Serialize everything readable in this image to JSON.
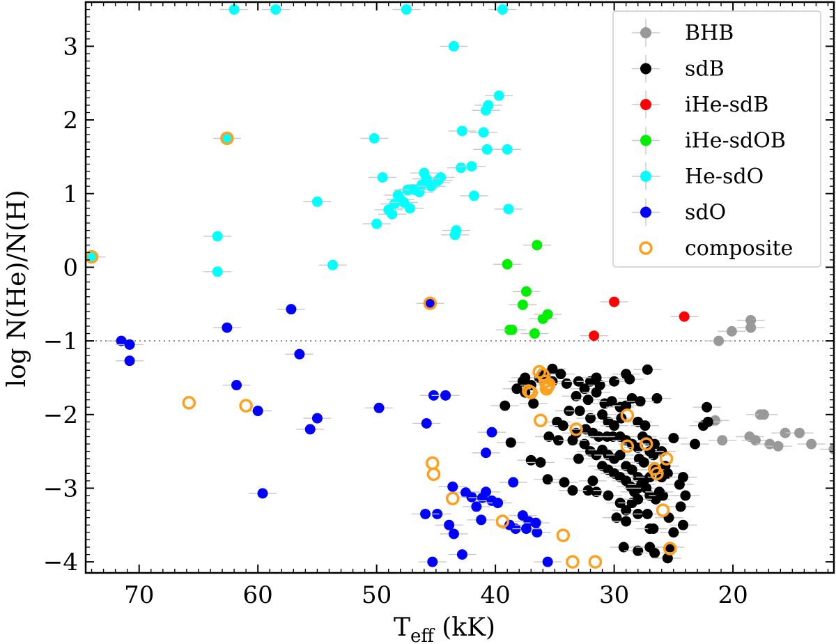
{
  "chart_data": {
    "type": "scatter",
    "xlabel_main": "T",
    "xlabel_sub": "eff",
    "xlabel_unit": " (kK)",
    "ylabel": "log N(He)/N(H)",
    "xlim": [
      74.5,
      11.5
    ],
    "ylim": [
      -4.15,
      3.6
    ],
    "x_reversed": true,
    "xticks": [
      70,
      60,
      50,
      40,
      30,
      20
    ],
    "yticks": [
      -4,
      -3,
      -2,
      -1,
      0,
      1,
      2,
      3
    ],
    "ytick_labels": [
      "−4",
      "−3",
      "−2",
      "−1",
      "0",
      "1",
      "2",
      "3"
    ],
    "reference_line": {
      "y": -1,
      "style": "dotted",
      "color": "#888888"
    },
    "legend_position": "top-right",
    "legend": [
      {
        "name": "BHB",
        "color": "#999999",
        "kind": "filled"
      },
      {
        "name": "sdB",
        "color": "#000000",
        "kind": "filled"
      },
      {
        "name": "iHe-sdB",
        "color": "#ff0000",
        "kind": "filled"
      },
      {
        "name": "iHe-sdOB",
        "color": "#00ee00",
        "kind": "filled"
      },
      {
        "name": "He-sdO",
        "color": "#00ffff",
        "kind": "filled"
      },
      {
        "name": "sdO",
        "color": "#0000ff",
        "kind": "filled"
      },
      {
        "name": "composite",
        "color": "#ff9f1c",
        "kind": "ring"
      }
    ],
    "series": [
      {
        "name": "BHB",
        "color": "#999999",
        "points": [
          [
            21.2,
            -1.0
          ],
          [
            20.9,
            -2.35
          ],
          [
            20.1,
            -0.87
          ],
          [
            21.5,
            -2.08
          ],
          [
            18.5,
            -0.72
          ],
          [
            18.5,
            -0.82
          ],
          [
            17.7,
            -2.0
          ],
          [
            17.4,
            -2.0
          ],
          [
            18.6,
            -2.3
          ],
          [
            18.1,
            -2.35
          ],
          [
            16.9,
            -2.4
          ],
          [
            16.2,
            -2.43
          ],
          [
            15.6,
            -2.25
          ],
          [
            14.4,
            -2.25
          ],
          [
            13.4,
            -2.4
          ],
          [
            11.5,
            -2.47
          ]
        ]
      },
      {
        "name": "sdB",
        "color": "#000000",
        "points": [
          [
            36.3,
            -1.5
          ],
          [
            35.8,
            -1.45
          ],
          [
            35.2,
            -1.38
          ],
          [
            34.5,
            -1.45
          ],
          [
            35.2,
            -1.55
          ],
          [
            34.0,
            -1.58
          ],
          [
            33.0,
            -1.55
          ],
          [
            32.0,
            -1.55
          ],
          [
            31.5,
            -1.5
          ],
          [
            31.2,
            -1.6
          ],
          [
            30.0,
            -1.55
          ],
          [
            29.0,
            -1.45
          ],
          [
            28.7,
            -1.52
          ],
          [
            27.2,
            -1.39
          ],
          [
            26.4,
            -1.78
          ],
          [
            37.5,
            -1.5
          ],
          [
            37.7,
            -1.55
          ],
          [
            37.0,
            -1.6
          ],
          [
            37.5,
            -1.7
          ],
          [
            38.2,
            -1.65
          ],
          [
            36.8,
            -1.85
          ],
          [
            39.2,
            -1.88
          ],
          [
            33.2,
            -1.75
          ],
          [
            32.5,
            -1.65
          ],
          [
            32.2,
            -1.8
          ],
          [
            31.5,
            -1.7
          ],
          [
            30.8,
            -1.85
          ],
          [
            30.2,
            -1.82
          ],
          [
            29.5,
            -1.9
          ],
          [
            29.0,
            -1.88
          ],
          [
            28.5,
            -1.78
          ],
          [
            27.8,
            -1.82
          ],
          [
            33.8,
            -1.95
          ],
          [
            32.9,
            -1.95
          ],
          [
            32.0,
            -2.05
          ],
          [
            31.0,
            -2.0
          ],
          [
            30.5,
            -2.1
          ],
          [
            30.0,
            -2.15
          ],
          [
            29.4,
            -2.05
          ],
          [
            28.0,
            -2.1
          ],
          [
            27.4,
            -2.15
          ],
          [
            27.6,
            -2.3
          ],
          [
            27.2,
            -2.35
          ],
          [
            26.6,
            -2.4
          ],
          [
            26.0,
            -2.5
          ],
          [
            26.7,
            -2.55
          ],
          [
            25.7,
            -2.7
          ],
          [
            34.8,
            -2.1
          ],
          [
            34.3,
            -2.15
          ],
          [
            33.2,
            -2.25
          ],
          [
            32.4,
            -2.2
          ],
          [
            31.8,
            -2.25
          ],
          [
            31.3,
            -2.3
          ],
          [
            30.6,
            -2.3
          ],
          [
            30.1,
            -2.3
          ],
          [
            29.5,
            -2.3
          ],
          [
            29.0,
            -2.35
          ],
          [
            28.5,
            -2.4
          ],
          [
            28.0,
            -2.45
          ],
          [
            27.9,
            -2.6
          ],
          [
            27.5,
            -2.65
          ],
          [
            27.0,
            -2.5
          ],
          [
            32.5,
            -2.4
          ],
          [
            32.0,
            -2.5
          ],
          [
            31.5,
            -2.55
          ],
          [
            31.0,
            -2.48
          ],
          [
            30.5,
            -2.55
          ],
          [
            30.0,
            -2.6
          ],
          [
            29.5,
            -2.55
          ],
          [
            29.0,
            -2.7
          ],
          [
            28.5,
            -2.75
          ],
          [
            28.0,
            -2.85
          ],
          [
            27.5,
            -2.9
          ],
          [
            27.0,
            -2.85
          ],
          [
            26.5,
            -2.75
          ],
          [
            26.0,
            -2.85
          ],
          [
            25.5,
            -2.8
          ],
          [
            31.0,
            -2.7
          ],
          [
            30.5,
            -2.75
          ],
          [
            30.0,
            -2.8
          ],
          [
            29.5,
            -2.85
          ],
          [
            29.0,
            -2.9
          ],
          [
            28.6,
            -2.98
          ],
          [
            28.3,
            -3.05
          ],
          [
            28.0,
            -3.0
          ],
          [
            27.7,
            -2.95
          ],
          [
            27.3,
            -3.0
          ],
          [
            27.0,
            -3.1
          ],
          [
            26.5,
            -3.15
          ],
          [
            25.9,
            -3.1
          ],
          [
            24.5,
            -2.95
          ],
          [
            24.2,
            -2.85
          ],
          [
            35.5,
            -2.3
          ],
          [
            35.6,
            -2.88
          ],
          [
            34.7,
            -2.35
          ],
          [
            34.2,
            -2.92
          ],
          [
            33.5,
            -2.35
          ],
          [
            33.0,
            -2.6
          ],
          [
            31.8,
            -2.9
          ],
          [
            31.5,
            -3.05
          ],
          [
            32.2,
            -3.03
          ],
          [
            30.5,
            -3.1
          ],
          [
            29.5,
            -3.2
          ],
          [
            29.0,
            -3.3
          ],
          [
            28.5,
            -3.2
          ],
          [
            28.0,
            -3.15
          ],
          [
            38.7,
            -2.38
          ],
          [
            37.0,
            -2.62
          ],
          [
            36.2,
            -2.65
          ],
          [
            33.5,
            -3.03
          ],
          [
            29.8,
            -3.4
          ],
          [
            29.0,
            -3.45
          ],
          [
            28.0,
            -3.35
          ],
          [
            27.2,
            -3.35
          ],
          [
            27.0,
            -3.55
          ],
          [
            26.7,
            -3.55
          ],
          [
            25.3,
            -3.8
          ],
          [
            25.0,
            -3.6
          ],
          [
            24.2,
            -3.5
          ],
          [
            24.4,
            -3.25
          ],
          [
            24.0,
            -3.1
          ],
          [
            29.2,
            -3.8
          ],
          [
            28.0,
            -3.85
          ],
          [
            27.0,
            -3.8
          ],
          [
            26.6,
            -3.88
          ],
          [
            25.5,
            -3.95
          ],
          [
            23.2,
            -2.4
          ],
          [
            22.5,
            -2.15
          ],
          [
            22.2,
            -1.9
          ],
          [
            22.1,
            -2.1
          ],
          [
            25.0,
            -2.32
          ],
          [
            26.2,
            -3.05
          ],
          [
            25.4,
            -3.4
          ]
        ]
      },
      {
        "name": "iHe-sdB",
        "color": "#ff0000",
        "points": [
          [
            31.7,
            -0.93
          ],
          [
            30.0,
            -0.47
          ],
          [
            24.1,
            -0.67
          ]
        ]
      },
      {
        "name": "iHe-sdOB",
        "color": "#00ee00",
        "points": [
          [
            38.8,
            -0.85
          ],
          [
            38.6,
            -0.85
          ],
          [
            37.7,
            -0.51
          ],
          [
            37.4,
            -0.33
          ],
          [
            36.7,
            -0.9
          ],
          [
            36.5,
            0.3
          ],
          [
            39.0,
            0.04
          ],
          [
            36.0,
            -0.7
          ],
          [
            35.6,
            -0.64
          ]
        ]
      },
      {
        "name": "He-sdO",
        "color": "#00ffff",
        "points": [
          [
            62.0,
            3.5
          ],
          [
            58.5,
            3.5
          ],
          [
            47.5,
            3.5
          ],
          [
            39.4,
            3.5
          ],
          [
            43.5,
            3.0
          ],
          [
            39.7,
            2.33
          ],
          [
            40.6,
            2.2
          ],
          [
            40.8,
            2.13
          ],
          [
            42.8,
            1.85
          ],
          [
            40.7,
            1.6
          ],
          [
            41.0,
            1.83
          ],
          [
            39.0,
            1.6
          ],
          [
            42.9,
            1.35
          ],
          [
            42.0,
            1.37
          ],
          [
            50.2,
            1.75
          ],
          [
            49.5,
            1.22
          ],
          [
            48.2,
            0.98
          ],
          [
            47.0,
            1.06
          ],
          [
            46.0,
            1.28
          ],
          [
            45.0,
            1.15
          ],
          [
            44.6,
            1.22
          ],
          [
            46.2,
            1.12
          ],
          [
            46.4,
            1.02
          ],
          [
            47.4,
            1.05
          ],
          [
            48.0,
            0.92
          ],
          [
            48.5,
            0.86
          ],
          [
            48.7,
            0.72
          ],
          [
            49.0,
            0.78
          ],
          [
            47.7,
            0.88
          ],
          [
            47.2,
            0.8
          ],
          [
            46.8,
            1.05
          ],
          [
            45.4,
            1.1
          ],
          [
            44.8,
            1.18
          ],
          [
            45.8,
            1.2
          ],
          [
            43.4,
            0.44
          ],
          [
            43.3,
            0.5
          ],
          [
            41.8,
            0.97
          ],
          [
            38.9,
            0.79
          ],
          [
            55.0,
            0.89
          ],
          [
            50.0,
            0.59
          ],
          [
            53.7,
            0.03
          ],
          [
            63.4,
            0.42
          ],
          [
            63.4,
            -0.06
          ],
          [
            62.6,
            1.75
          ],
          [
            74.0,
            0.14
          ]
        ]
      },
      {
        "name": "sdO",
        "color": "#0000ff",
        "points": [
          [
            71.5,
            -1.0
          ],
          [
            70.8,
            -1.05
          ],
          [
            70.8,
            -1.27
          ],
          [
            62.6,
            -0.82
          ],
          [
            57.2,
            -0.57
          ],
          [
            56.5,
            -1.18
          ],
          [
            61.8,
            -1.6
          ],
          [
            60.0,
            -1.95
          ],
          [
            55.0,
            -2.05
          ],
          [
            55.6,
            -2.2
          ],
          [
            59.6,
            -3.07
          ],
          [
            49.8,
            -1.91
          ],
          [
            45.5,
            -0.49
          ],
          [
            45.2,
            -1.74
          ],
          [
            44.2,
            -1.74
          ],
          [
            45.8,
            -2.12
          ],
          [
            40.3,
            -2.24
          ],
          [
            40.8,
            -2.52
          ],
          [
            38.5,
            -2.92
          ],
          [
            43.6,
            -2.98
          ],
          [
            42.5,
            -3.06
          ],
          [
            42.0,
            -3.12
          ],
          [
            41.6,
            -3.25
          ],
          [
            41.1,
            -3.13
          ],
          [
            40.8,
            -3.05
          ],
          [
            40.3,
            -3.17
          ],
          [
            39.8,
            -3.2
          ],
          [
            44.9,
            -3.35
          ],
          [
            45.9,
            -3.35
          ],
          [
            43.9,
            -3.5
          ],
          [
            43.5,
            -3.62
          ],
          [
            41.2,
            -3.43
          ],
          [
            38.3,
            -3.55
          ],
          [
            38.8,
            -3.5
          ],
          [
            37.7,
            -3.37
          ],
          [
            37.2,
            -3.45
          ],
          [
            36.6,
            -3.47
          ],
          [
            36.5,
            -3.6
          ],
          [
            45.3,
            -4.0
          ],
          [
            42.8,
            -3.9
          ],
          [
            35.6,
            -4.0
          ],
          [
            37.4,
            -3.55
          ]
        ]
      },
      {
        "name": "composite",
        "color": "#ff9f1c",
        "ring": true,
        "points": [
          [
            74.0,
            0.14
          ],
          [
            62.6,
            1.75
          ],
          [
            65.8,
            -1.84
          ],
          [
            61.0,
            -1.88
          ],
          [
            45.5,
            -0.49
          ],
          [
            45.3,
            -2.66
          ],
          [
            45.2,
            -2.81
          ],
          [
            43.6,
            -3.14
          ],
          [
            39.4,
            -3.45
          ],
          [
            34.3,
            -3.64
          ],
          [
            33.5,
            -4.0
          ],
          [
            31.6,
            -4.0
          ],
          [
            36.3,
            -1.42
          ],
          [
            36.0,
            -1.46
          ],
          [
            35.8,
            -1.55
          ],
          [
            35.6,
            -1.62
          ],
          [
            35.7,
            -1.65
          ],
          [
            35.5,
            -1.59
          ],
          [
            36.2,
            -2.08
          ],
          [
            37.0,
            -1.7
          ],
          [
            37.2,
            -1.68
          ],
          [
            33.2,
            -2.2
          ],
          [
            28.9,
            -2.01
          ],
          [
            28.9,
            -2.43
          ],
          [
            27.3,
            -2.4
          ],
          [
            26.6,
            -2.74
          ],
          [
            26.4,
            -2.8
          ],
          [
            25.6,
            -2.6
          ],
          [
            25.9,
            -3.3
          ],
          [
            25.3,
            -3.82
          ]
        ]
      }
    ]
  }
}
